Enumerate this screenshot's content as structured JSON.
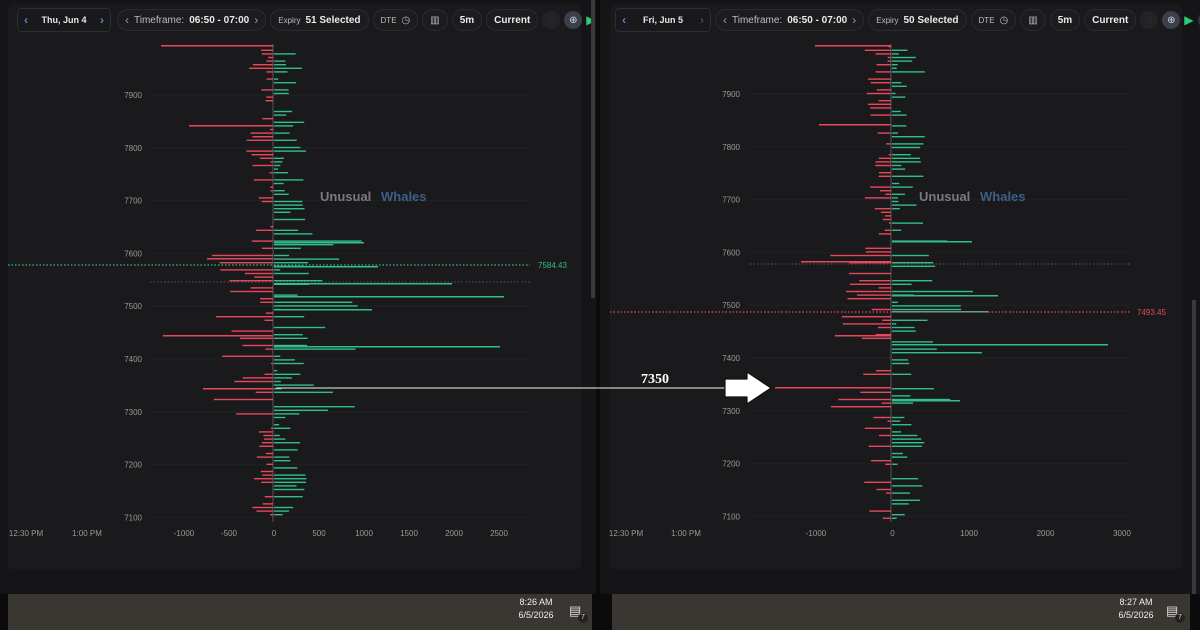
{
  "left": {
    "date": "Thu, Jun 4",
    "timeframe_label": "Timeframe:",
    "timeframe_value": "06:50 - 07:00",
    "expiry_label": "Expiry",
    "expiry_value": "51 Selected",
    "dte_label": "DTE",
    "interval": "5m",
    "current_label": "Current",
    "time_labels": [
      "12:30 PM",
      "1:00 PM"
    ],
    "price_ticks": [
      "7900",
      "7800",
      "7700",
      "7600",
      "7500",
      "7400",
      "7300",
      "7200",
      "7100"
    ],
    "x_ticks": [
      "-1000",
      "-500",
      "0",
      "500",
      "1000",
      "1500",
      "2000",
      "2500"
    ],
    "price_marker": "7584.43",
    "watermark_a": "Unusual",
    "watermark_b": "Whales",
    "clock_time": "8:26 AM",
    "clock_date": "6/5/2026",
    "notif_count": "7"
  },
  "right": {
    "date": "Fri, Jun 5",
    "timeframe_label": "Timeframe:",
    "timeframe_value": "06:50 - 07:00",
    "expiry_label": "Expiry",
    "expiry_value": "50 Selected",
    "dte_label": "DTE",
    "interval": "5m",
    "current_label": "Current",
    "time_labels": [
      "12:30 PM",
      "1:00 PM"
    ],
    "price_ticks": [
      "7900",
      "7800",
      "7700",
      "7600",
      "7500",
      "7400",
      "7300",
      "7200",
      "7100"
    ],
    "x_ticks": [
      "-1000",
      "0",
      "1000",
      "2000",
      "3000"
    ],
    "price_marker": "7493.45",
    "watermark_a": "Unusual",
    "watermark_b": "Whales",
    "clock_time": "8:27 AM",
    "clock_date": "6/5/2026",
    "notif_count": "7"
  },
  "annotation": {
    "label": "7350"
  },
  "colors": {
    "positive": "#2fbf8c",
    "negative": "#e8485a",
    "accent": "#4a8be0"
  }
}
